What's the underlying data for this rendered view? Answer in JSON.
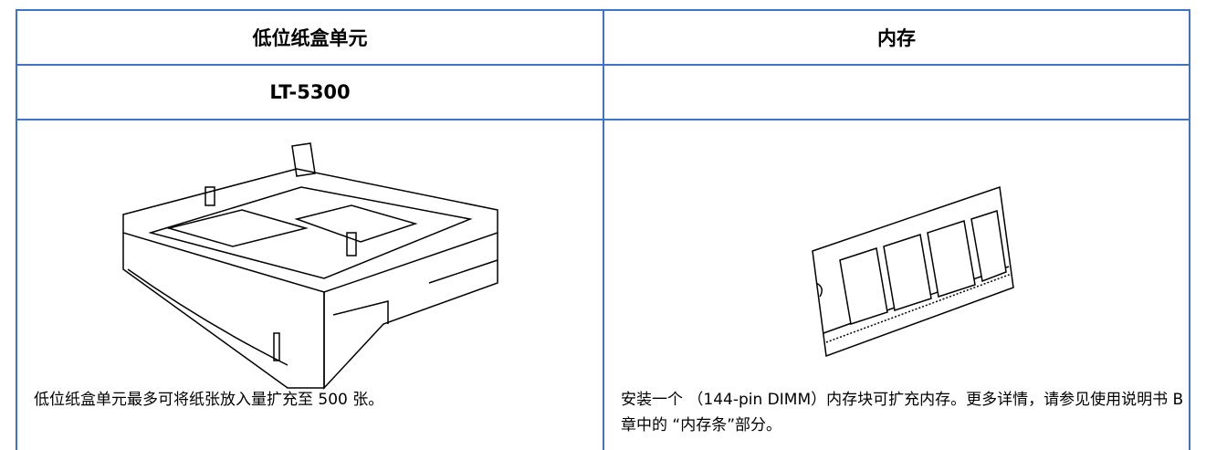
{
  "columns": [
    {
      "header": "低位纸盒单元",
      "model": "LT-5300",
      "description": "低位纸盒单元最多可将纸张放入量扩充至 500 张。"
    },
    {
      "header": "内存",
      "description": "安装一个 （144-pin DIMM）内存块可扩充内存。更多详情，请参见使用说明书 B 章中的 “内存条”部分。"
    }
  ]
}
